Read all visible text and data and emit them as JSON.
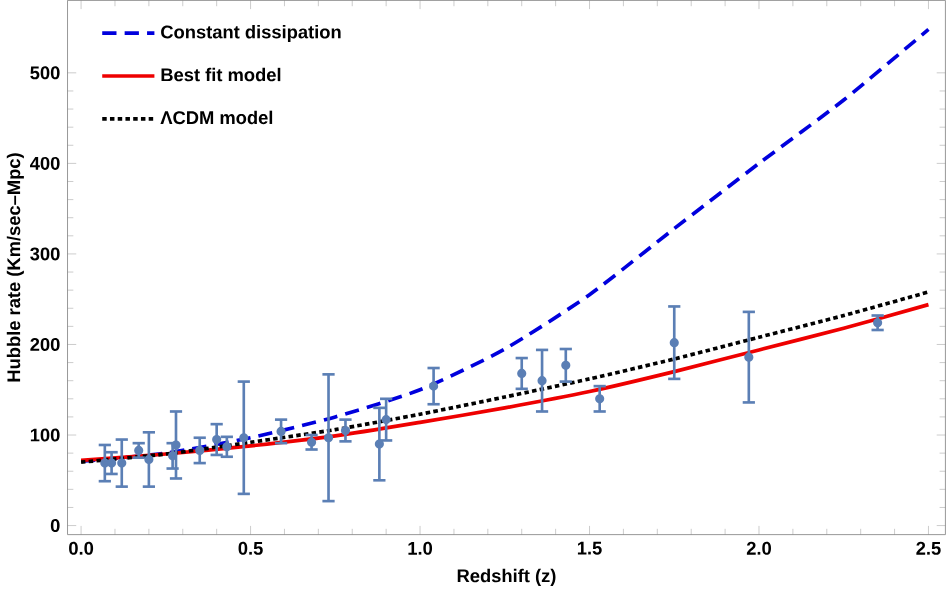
{
  "chart_data": {
    "type": "line",
    "xlabel": "Redshift (z)",
    "ylabel": "Hubble rate (Km/sec–Mpc)",
    "xlim": [
      -0.04,
      2.55
    ],
    "ylim": [
      -10,
      580
    ],
    "xticks": [
      {
        "value": 0,
        "label": "0.0"
      },
      {
        "value": 0.5,
        "label": "0.5"
      },
      {
        "value": 1,
        "label": "1.0"
      },
      {
        "value": 1.5,
        "label": "1.5"
      },
      {
        "value": 2,
        "label": "2.0"
      },
      {
        "value": 2.5,
        "label": "2.5"
      }
    ],
    "yticks": [
      0,
      100,
      200,
      300,
      400,
      500
    ],
    "legend": "top left",
    "grid": false,
    "series": [
      {
        "name": "Constant dissipation",
        "color": "#0000dd",
        "line_style": "dashed",
        "marker": "none",
        "x": [
          0,
          0.25,
          0.5,
          0.75,
          1,
          1.25,
          1.5,
          1.75,
          2,
          2.25,
          2.5
        ],
        "values": [
          71,
          80,
          97,
          120,
          150,
          195,
          255,
          328,
          400,
          470,
          548
        ]
      },
      {
        "name": "Best fit model",
        "color": "#ee0000",
        "line_style": "solid",
        "marker": "none",
        "x": [
          0,
          0.25,
          0.5,
          0.75,
          1,
          1.25,
          1.5,
          1.75,
          2,
          2.25,
          2.5
        ],
        "values": [
          72,
          79,
          88,
          99,
          114,
          130,
          148,
          170,
          194,
          218,
          244
        ]
      },
      {
        "name": "ΛCDM model",
        "color": "#000000",
        "line_style": "dotted",
        "marker": "none",
        "x": [
          0,
          0.25,
          0.5,
          0.75,
          1,
          1.25,
          1.5,
          1.75,
          2,
          2.25,
          2.5
        ],
        "values": [
          70,
          79,
          92,
          106,
          123,
          142,
          162,
          184,
          208,
          232,
          258
        ]
      },
      {
        "type": "scatter",
        "color": "#5b7fb5",
        "marker": "circle",
        "x": [
          0.07,
          0.09,
          0.12,
          0.17,
          0.2,
          0.27,
          0.28,
          0.35,
          0.4,
          0.43,
          0.48,
          0.59,
          0.68,
          0.73,
          0.78,
          0.88,
          0.9,
          1.04,
          1.3,
          1.36,
          1.43,
          1.53,
          1.75,
          1.97,
          2.35
        ],
        "values": [
          69,
          69,
          69,
          83,
          73,
          77,
          89,
          83,
          95,
          87,
          97,
          104,
          92,
          97,
          105,
          90,
          117,
          154,
          168,
          160,
          177,
          140,
          202,
          186,
          224
        ],
        "errors": [
          20,
          12,
          26,
          8,
          30,
          14,
          37,
          14,
          17,
          11,
          62,
          13,
          8,
          70,
          12,
          40,
          23,
          20,
          17,
          34,
          18,
          14,
          40,
          50,
          8
        ]
      }
    ]
  }
}
